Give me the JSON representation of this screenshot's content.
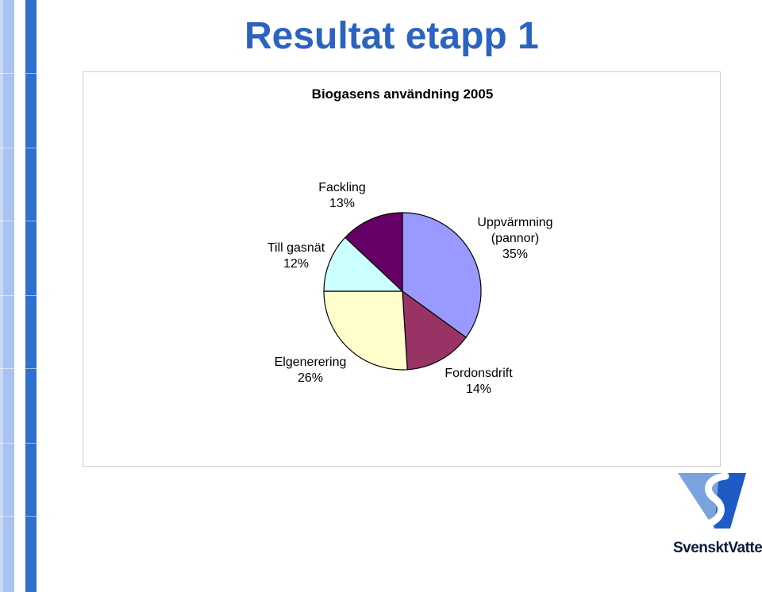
{
  "slide": {
    "title": "Resultat etapp 1"
  },
  "brand": {
    "name": "SvensktVatten",
    "colors": {
      "dark_blue": "#1f5bc4",
      "light_blue": "#7aa3de"
    }
  },
  "chart_data": {
    "type": "pie",
    "title": "Biogasens användning 2005",
    "slices": [
      {
        "line1": "Uppvärmning",
        "line2": "(pannor)",
        "percent_label": "35%",
        "value": 35,
        "color": "#9999ff"
      },
      {
        "line1": "Fordonsdrift",
        "line2": "",
        "percent_label": "14%",
        "value": 14,
        "color": "#993366"
      },
      {
        "line1": "Elgenerering",
        "line2": "",
        "percent_label": "26%",
        "value": 26,
        "color": "#ffffcc"
      },
      {
        "line1": "Till gasnät",
        "line2": "",
        "percent_label": "12%",
        "value": 12,
        "color": "#ccffff"
      },
      {
        "line1": "Fackling",
        "line2": "",
        "percent_label": "13%",
        "value": 13,
        "color": "#660066"
      }
    ],
    "start_angle_deg": 0,
    "direction": "clockwise",
    "legend": "none"
  }
}
